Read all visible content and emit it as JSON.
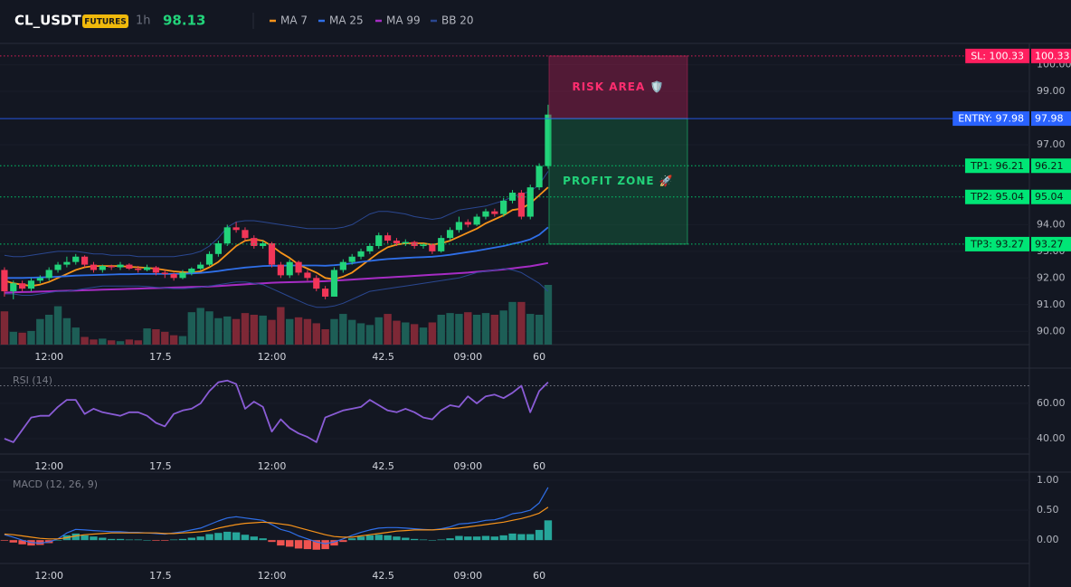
{
  "header": {
    "symbol": "CL_USDT",
    "badge": "FUTURES",
    "interval": "1h",
    "price": 98.13
  },
  "chart_data": [
    {
      "type": "candlestick",
      "xlim": [
        -0.5,
        115
      ],
      "ylim": [
        89.5,
        100.8
      ],
      "xticks": [
        {
          "value": 5,
          "label": "12:00"
        },
        17.5,
        {
          "value": 30,
          "label": "12:00"
        },
        42.5,
        {
          "value": 52,
          "label": "09:00"
        },
        60
      ],
      "yticks": [
        {
          "value": 90,
          "label": "90.00"
        },
        {
          "value": 91,
          "label": "91.00"
        },
        {
          "value": 92,
          "label": "92.00"
        },
        {
          "value": 93,
          "label": "93.00"
        },
        {
          "value": 94,
          "label": "94.00"
        },
        {
          "value": 97,
          "label": "97.00"
        },
        {
          "value": 99,
          "label": "99.00"
        },
        {
          "value": 100,
          "label": "100.00"
        }
      ],
      "up_color": "#22d37a",
      "down_color": "#f23658",
      "volume_up_color": "#1d5e56",
      "volume_down_color": "#7d2836",
      "candles": [
        [
          92.3,
          92.4,
          91.3,
          91.5
        ],
        [
          91.5,
          91.9,
          91.2,
          91.8
        ],
        [
          91.8,
          91.9,
          91.5,
          91.6
        ],
        [
          91.6,
          92.0,
          91.5,
          91.9
        ],
        [
          91.9,
          92.1,
          91.8,
          92.0
        ],
        [
          92.0,
          92.4,
          91.9,
          92.3
        ],
        [
          92.3,
          92.6,
          92.2,
          92.5
        ],
        [
          92.5,
          92.8,
          92.4,
          92.6
        ],
        [
          92.6,
          92.9,
          92.5,
          92.8
        ],
        [
          92.8,
          92.85,
          92.4,
          92.5
        ],
        [
          92.5,
          92.6,
          92.2,
          92.3
        ],
        [
          92.3,
          92.5,
          92.2,
          92.45
        ],
        [
          92.45,
          92.5,
          92.3,
          92.4
        ],
        [
          92.4,
          92.6,
          92.3,
          92.5
        ],
        [
          92.5,
          92.55,
          92.3,
          92.35
        ],
        [
          92.35,
          92.45,
          92.2,
          92.3
        ],
        [
          92.3,
          92.5,
          92.25,
          92.4
        ],
        [
          92.4,
          92.45,
          92.1,
          92.2
        ],
        [
          92.2,
          92.3,
          92.0,
          92.15
        ],
        [
          92.15,
          92.2,
          91.9,
          92.0
        ],
        [
          92.0,
          92.3,
          91.95,
          92.2
        ],
        [
          92.2,
          92.4,
          92.1,
          92.35
        ],
        [
          92.35,
          92.6,
          92.3,
          92.5
        ],
        [
          92.5,
          93.0,
          92.45,
          92.9
        ],
        [
          92.9,
          93.4,
          92.8,
          93.3
        ],
        [
          93.3,
          94.0,
          93.2,
          93.9
        ],
        [
          93.9,
          94.1,
          93.7,
          93.8
        ],
        [
          93.8,
          93.9,
          93.4,
          93.5
        ],
        [
          93.5,
          93.6,
          93.1,
          93.2
        ],
        [
          93.2,
          93.4,
          93.1,
          93.3
        ],
        [
          93.3,
          93.35,
          92.4,
          92.5
        ],
        [
          92.5,
          92.6,
          92.0,
          92.1
        ],
        [
          92.1,
          92.7,
          92.0,
          92.6
        ],
        [
          92.6,
          92.65,
          92.1,
          92.2
        ],
        [
          92.2,
          92.3,
          91.9,
          92.0
        ],
        [
          92.0,
          92.1,
          91.5,
          91.6
        ],
        [
          91.6,
          91.7,
          91.2,
          91.3
        ],
        [
          91.3,
          92.4,
          91.3,
          92.3
        ],
        [
          92.3,
          92.7,
          92.2,
          92.6
        ],
        [
          92.6,
          92.9,
          92.5,
          92.8
        ],
        [
          92.8,
          93.1,
          92.7,
          93.0
        ],
        [
          93.0,
          93.3,
          92.9,
          93.2
        ],
        [
          93.2,
          93.7,
          93.1,
          93.6
        ],
        [
          93.6,
          93.7,
          93.3,
          93.4
        ],
        [
          93.4,
          93.5,
          93.2,
          93.3
        ],
        [
          93.3,
          93.45,
          93.2,
          93.35
        ],
        [
          93.35,
          93.4,
          93.1,
          93.2
        ],
        [
          93.2,
          93.3,
          93.1,
          93.25
        ],
        [
          93.25,
          93.3,
          92.9,
          93.0
        ],
        [
          93.0,
          93.6,
          92.95,
          93.5
        ],
        [
          93.5,
          93.9,
          93.4,
          93.8
        ],
        [
          93.8,
          94.3,
          93.7,
          94.1
        ],
        [
          94.1,
          94.2,
          93.9,
          94.0
        ],
        [
          94.0,
          94.4,
          93.95,
          94.3
        ],
        [
          94.3,
          94.6,
          94.2,
          94.5
        ],
        [
          94.5,
          94.6,
          94.3,
          94.4
        ],
        [
          94.4,
          95.0,
          94.3,
          94.9
        ],
        [
          94.9,
          95.3,
          94.8,
          95.2
        ],
        [
          95.2,
          95.3,
          94.2,
          94.3
        ],
        [
          94.3,
          95.5,
          94.2,
          95.4
        ],
        [
          95.4,
          96.3,
          95.3,
          96.2
        ],
        [
          96.2,
          98.5,
          96.1,
          98.13
        ]
      ],
      "volume": [
        78,
        30,
        28,
        32,
        60,
        70,
        90,
        62,
        40,
        18,
        12,
        14,
        10,
        8,
        12,
        10,
        38,
        36,
        30,
        22,
        20,
        76,
        86,
        78,
        62,
        66,
        60,
        74,
        70,
        68,
        58,
        88,
        60,
        64,
        60,
        50,
        36,
        60,
        72,
        58,
        50,
        46,
        64,
        72,
        56,
        52,
        48,
        40,
        52,
        70,
        74,
        72,
        76,
        70,
        74,
        70,
        80,
        100,
        100,
        72,
        70,
        140
      ],
      "series": [
        {
          "name": "MA 7",
          "color": "#f7931a",
          "values": [
            91.9,
            91.8,
            91.75,
            91.7,
            91.75,
            91.85,
            92.0,
            92.15,
            92.3,
            92.4,
            92.45,
            92.45,
            92.45,
            92.45,
            92.42,
            92.4,
            92.38,
            92.35,
            92.3,
            92.25,
            92.22,
            92.2,
            92.25,
            92.4,
            92.6,
            92.9,
            93.2,
            93.4,
            93.45,
            93.4,
            93.2,
            92.95,
            92.75,
            92.5,
            92.35,
            92.2,
            92.0,
            91.95,
            92.05,
            92.2,
            92.45,
            92.7,
            92.95,
            93.15,
            93.25,
            93.3,
            93.3,
            93.3,
            93.25,
            93.3,
            93.4,
            93.55,
            93.7,
            93.85,
            94.05,
            94.2,
            94.35,
            94.55,
            94.6,
            94.8,
            95.1,
            95.4
          ]
        },
        {
          "name": "MA 25",
          "color": "#2f6fe8",
          "values": [
            92.0,
            92.0,
            92.0,
            92.01,
            92.02,
            92.03,
            92.05,
            92.07,
            92.09,
            92.1,
            92.11,
            92.12,
            92.13,
            92.14,
            92.14,
            92.15,
            92.15,
            92.15,
            92.15,
            92.15,
            92.16,
            92.17,
            92.19,
            92.22,
            92.26,
            92.31,
            92.35,
            92.39,
            92.42,
            92.45,
            92.46,
            92.46,
            92.47,
            92.47,
            92.47,
            92.47,
            92.46,
            92.48,
            92.51,
            92.55,
            92.6,
            92.64,
            92.68,
            92.71,
            92.73,
            92.75,
            92.77,
            92.78,
            92.8,
            92.83,
            92.87,
            92.92,
            92.97,
            93.02,
            93.08,
            93.14,
            93.2,
            93.28,
            93.35,
            93.45,
            93.62,
            93.9
          ]
        },
        {
          "name": "MA 99",
          "color": "#a62cc4",
          "values": [
            91.45,
            91.46,
            91.47,
            91.48,
            91.49,
            91.5,
            91.51,
            91.52,
            91.53,
            91.54,
            91.55,
            91.56,
            91.57,
            91.58,
            91.59,
            91.6,
            91.61,
            91.62,
            91.63,
            91.64,
            91.65,
            91.66,
            91.67,
            91.68,
            91.7,
            91.72,
            91.74,
            91.76,
            91.78,
            91.8,
            91.82,
            91.83,
            91.84,
            91.85,
            91.86,
            91.87,
            91.88,
            91.9,
            91.92,
            91.94,
            91.96,
            91.98,
            92.0,
            92.02,
            92.04,
            92.06,
            92.08,
            92.1,
            92.12,
            92.14,
            92.16,
            92.18,
            92.2,
            92.23,
            92.26,
            92.29,
            92.32,
            92.36,
            92.4,
            92.44,
            92.5,
            92.56
          ]
        },
        {
          "name": "BB 20",
          "color": "#2a4790",
          "upper": [
            92.85,
            92.8,
            92.8,
            92.85,
            92.9,
            92.95,
            93.0,
            93.0,
            93.0,
            92.95,
            92.9,
            92.9,
            92.85,
            92.85,
            92.85,
            92.8,
            92.8,
            92.8,
            92.8,
            92.8,
            92.85,
            92.9,
            93.0,
            93.2,
            93.5,
            93.9,
            94.1,
            94.15,
            94.15,
            94.1,
            94.05,
            94.0,
            93.95,
            93.9,
            93.85,
            93.85,
            93.85,
            93.85,
            93.9,
            94.0,
            94.2,
            94.4,
            94.5,
            94.5,
            94.45,
            94.4,
            94.3,
            94.25,
            94.2,
            94.25,
            94.4,
            94.55,
            94.6,
            94.65,
            94.7,
            94.8,
            94.9,
            95.05,
            95.15,
            95.25,
            95.5,
            96.0
          ],
          "lower": [
            91.4,
            91.4,
            91.35,
            91.35,
            91.4,
            91.45,
            91.5,
            91.5,
            91.55,
            91.6,
            91.65,
            91.7,
            91.7,
            91.7,
            91.7,
            91.7,
            91.68,
            91.65,
            91.62,
            91.6,
            91.6,
            91.62,
            91.65,
            91.7,
            91.75,
            91.8,
            91.85,
            91.85,
            91.8,
            91.75,
            91.6,
            91.45,
            91.3,
            91.15,
            91.0,
            90.9,
            90.9,
            90.95,
            91.05,
            91.2,
            91.35,
            91.5,
            91.55,
            91.6,
            91.65,
            91.7,
            91.75,
            91.8,
            91.85,
            91.9,
            91.95,
            92.0,
            92.1,
            92.2,
            92.25,
            92.3,
            92.35,
            92.3,
            92.2,
            92.0,
            91.8,
            91.5
          ]
        }
      ],
      "levels": [
        {
          "label": "SL: 100.33",
          "value": 100.33,
          "color": "#ff1f5f",
          "line": "dotted"
        },
        {
          "label": "ENTRY: 97.98",
          "value": 97.98,
          "color": "#2962ff",
          "line": "solid"
        },
        {
          "label": "TP1: 96.21",
          "value": 96.21,
          "color": "#00e676",
          "line": "dotted"
        },
        {
          "label": "TP2: 95.04",
          "value": 95.04,
          "color": "#00e676",
          "line": "dotted"
        },
        {
          "label": "TP3: 93.27",
          "value": 93.27,
          "color": "#00e676",
          "line": "dotted"
        }
      ],
      "zones": [
        {
          "label": "RISK AREA 🛡️",
          "color": "#ff2d6f"
        },
        {
          "label": "PROFIT ZONE 🚀",
          "color": "#22d37a"
        }
      ]
    },
    {
      "type": "line",
      "title": "RSI (14)",
      "xlim": [
        -0.5,
        115
      ],
      "ylim": [
        31.3,
        79.5
      ],
      "color": "#8a5cd6",
      "xticks": [
        {
          "value": 5,
          "label": "12:00"
        },
        17.5,
        {
          "value": 30,
          "label": "12:00"
        },
        42.5,
        {
          "value": 52,
          "label": "09:00"
        },
        60
      ],
      "yticks": [
        {
          "value": 40,
          "label": "40.00"
        },
        {
          "value": 60,
          "label": "60.00"
        }
      ],
      "hlines": [
        70
      ],
      "values": [
        40,
        38,
        45,
        52,
        53,
        53,
        58,
        62,
        62,
        54,
        57,
        55,
        54,
        53,
        55,
        55,
        53,
        49,
        47,
        54,
        56,
        57,
        60,
        67,
        72,
        73,
        71,
        57,
        61,
        58,
        44,
        51,
        46,
        43,
        41,
        38,
        52,
        54,
        56,
        57,
        58,
        62,
        59,
        56,
        55,
        57,
        55,
        52,
        51,
        56,
        59,
        58,
        64,
        60,
        64,
        65,
        63,
        66,
        70,
        55,
        67,
        72
      ]
    },
    {
      "type": "macd",
      "title": "MACD (12, 26, 9)",
      "xlim": [
        -0.5,
        115
      ],
      "ylim": [
        -0.39,
        1.12
      ],
      "xticks": [
        {
          "value": 5,
          "label": "12:00"
        },
        17.5,
        {
          "value": 30,
          "label": "12:00"
        },
        42.5,
        {
          "value": 52,
          "label": "09:00"
        },
        60
      ],
      "yticks": [
        {
          "value": 0,
          "label": "0.00"
        },
        {
          "value": 0.5,
          "label": "0.50"
        },
        {
          "value": 1,
          "label": "1.00"
        }
      ],
      "macd": {
        "color": "#2f6fe8",
        "values": [
          0.09,
          0.05,
          0.0,
          -0.04,
          -0.05,
          -0.03,
          0.02,
          0.12,
          0.18,
          0.17,
          0.16,
          0.15,
          0.14,
          0.14,
          0.13,
          0.13,
          0.12,
          0.11,
          0.1,
          0.12,
          0.14,
          0.17,
          0.2,
          0.26,
          0.32,
          0.37,
          0.39,
          0.37,
          0.35,
          0.33,
          0.26,
          0.18,
          0.14,
          0.07,
          0.02,
          -0.03,
          -0.06,
          -0.03,
          0.02,
          0.08,
          0.13,
          0.17,
          0.2,
          0.21,
          0.21,
          0.2,
          0.19,
          0.18,
          0.17,
          0.19,
          0.22,
          0.27,
          0.28,
          0.3,
          0.33,
          0.34,
          0.38,
          0.44,
          0.46,
          0.5,
          0.62,
          0.88
        ]
      },
      "signal": {
        "color": "#f7931a",
        "values": [
          0.1,
          0.09,
          0.07,
          0.05,
          0.03,
          0.02,
          0.02,
          0.04,
          0.07,
          0.09,
          0.1,
          0.11,
          0.12,
          0.12,
          0.12,
          0.12,
          0.12,
          0.12,
          0.11,
          0.11,
          0.12,
          0.13,
          0.14,
          0.16,
          0.2,
          0.23,
          0.26,
          0.28,
          0.29,
          0.3,
          0.29,
          0.27,
          0.25,
          0.21,
          0.17,
          0.13,
          0.09,
          0.06,
          0.05,
          0.05,
          0.07,
          0.09,
          0.11,
          0.13,
          0.15,
          0.16,
          0.17,
          0.17,
          0.17,
          0.18,
          0.19,
          0.2,
          0.22,
          0.24,
          0.26,
          0.28,
          0.3,
          0.33,
          0.36,
          0.4,
          0.45,
          0.55
        ]
      },
      "histogram": {
        "up_color": "#26a69a",
        "down_color": "#ef5350",
        "values": [
          -0.01,
          -0.04,
          -0.07,
          -0.09,
          -0.08,
          -0.05,
          0.0,
          0.08,
          0.11,
          0.08,
          0.06,
          0.04,
          0.02,
          0.02,
          0.01,
          0.01,
          0.0,
          -0.01,
          -0.01,
          0.01,
          0.02,
          0.04,
          0.06,
          0.1,
          0.12,
          0.14,
          0.13,
          0.09,
          0.06,
          0.03,
          -0.03,
          -0.09,
          -0.11,
          -0.14,
          -0.15,
          -0.16,
          -0.15,
          -0.09,
          -0.03,
          0.03,
          0.06,
          0.08,
          0.09,
          0.08,
          0.06,
          0.04,
          0.02,
          0.01,
          0.0,
          0.01,
          0.03,
          0.07,
          0.06,
          0.06,
          0.07,
          0.06,
          0.08,
          0.11,
          0.1,
          0.1,
          0.17,
          0.33
        ]
      }
    }
  ]
}
